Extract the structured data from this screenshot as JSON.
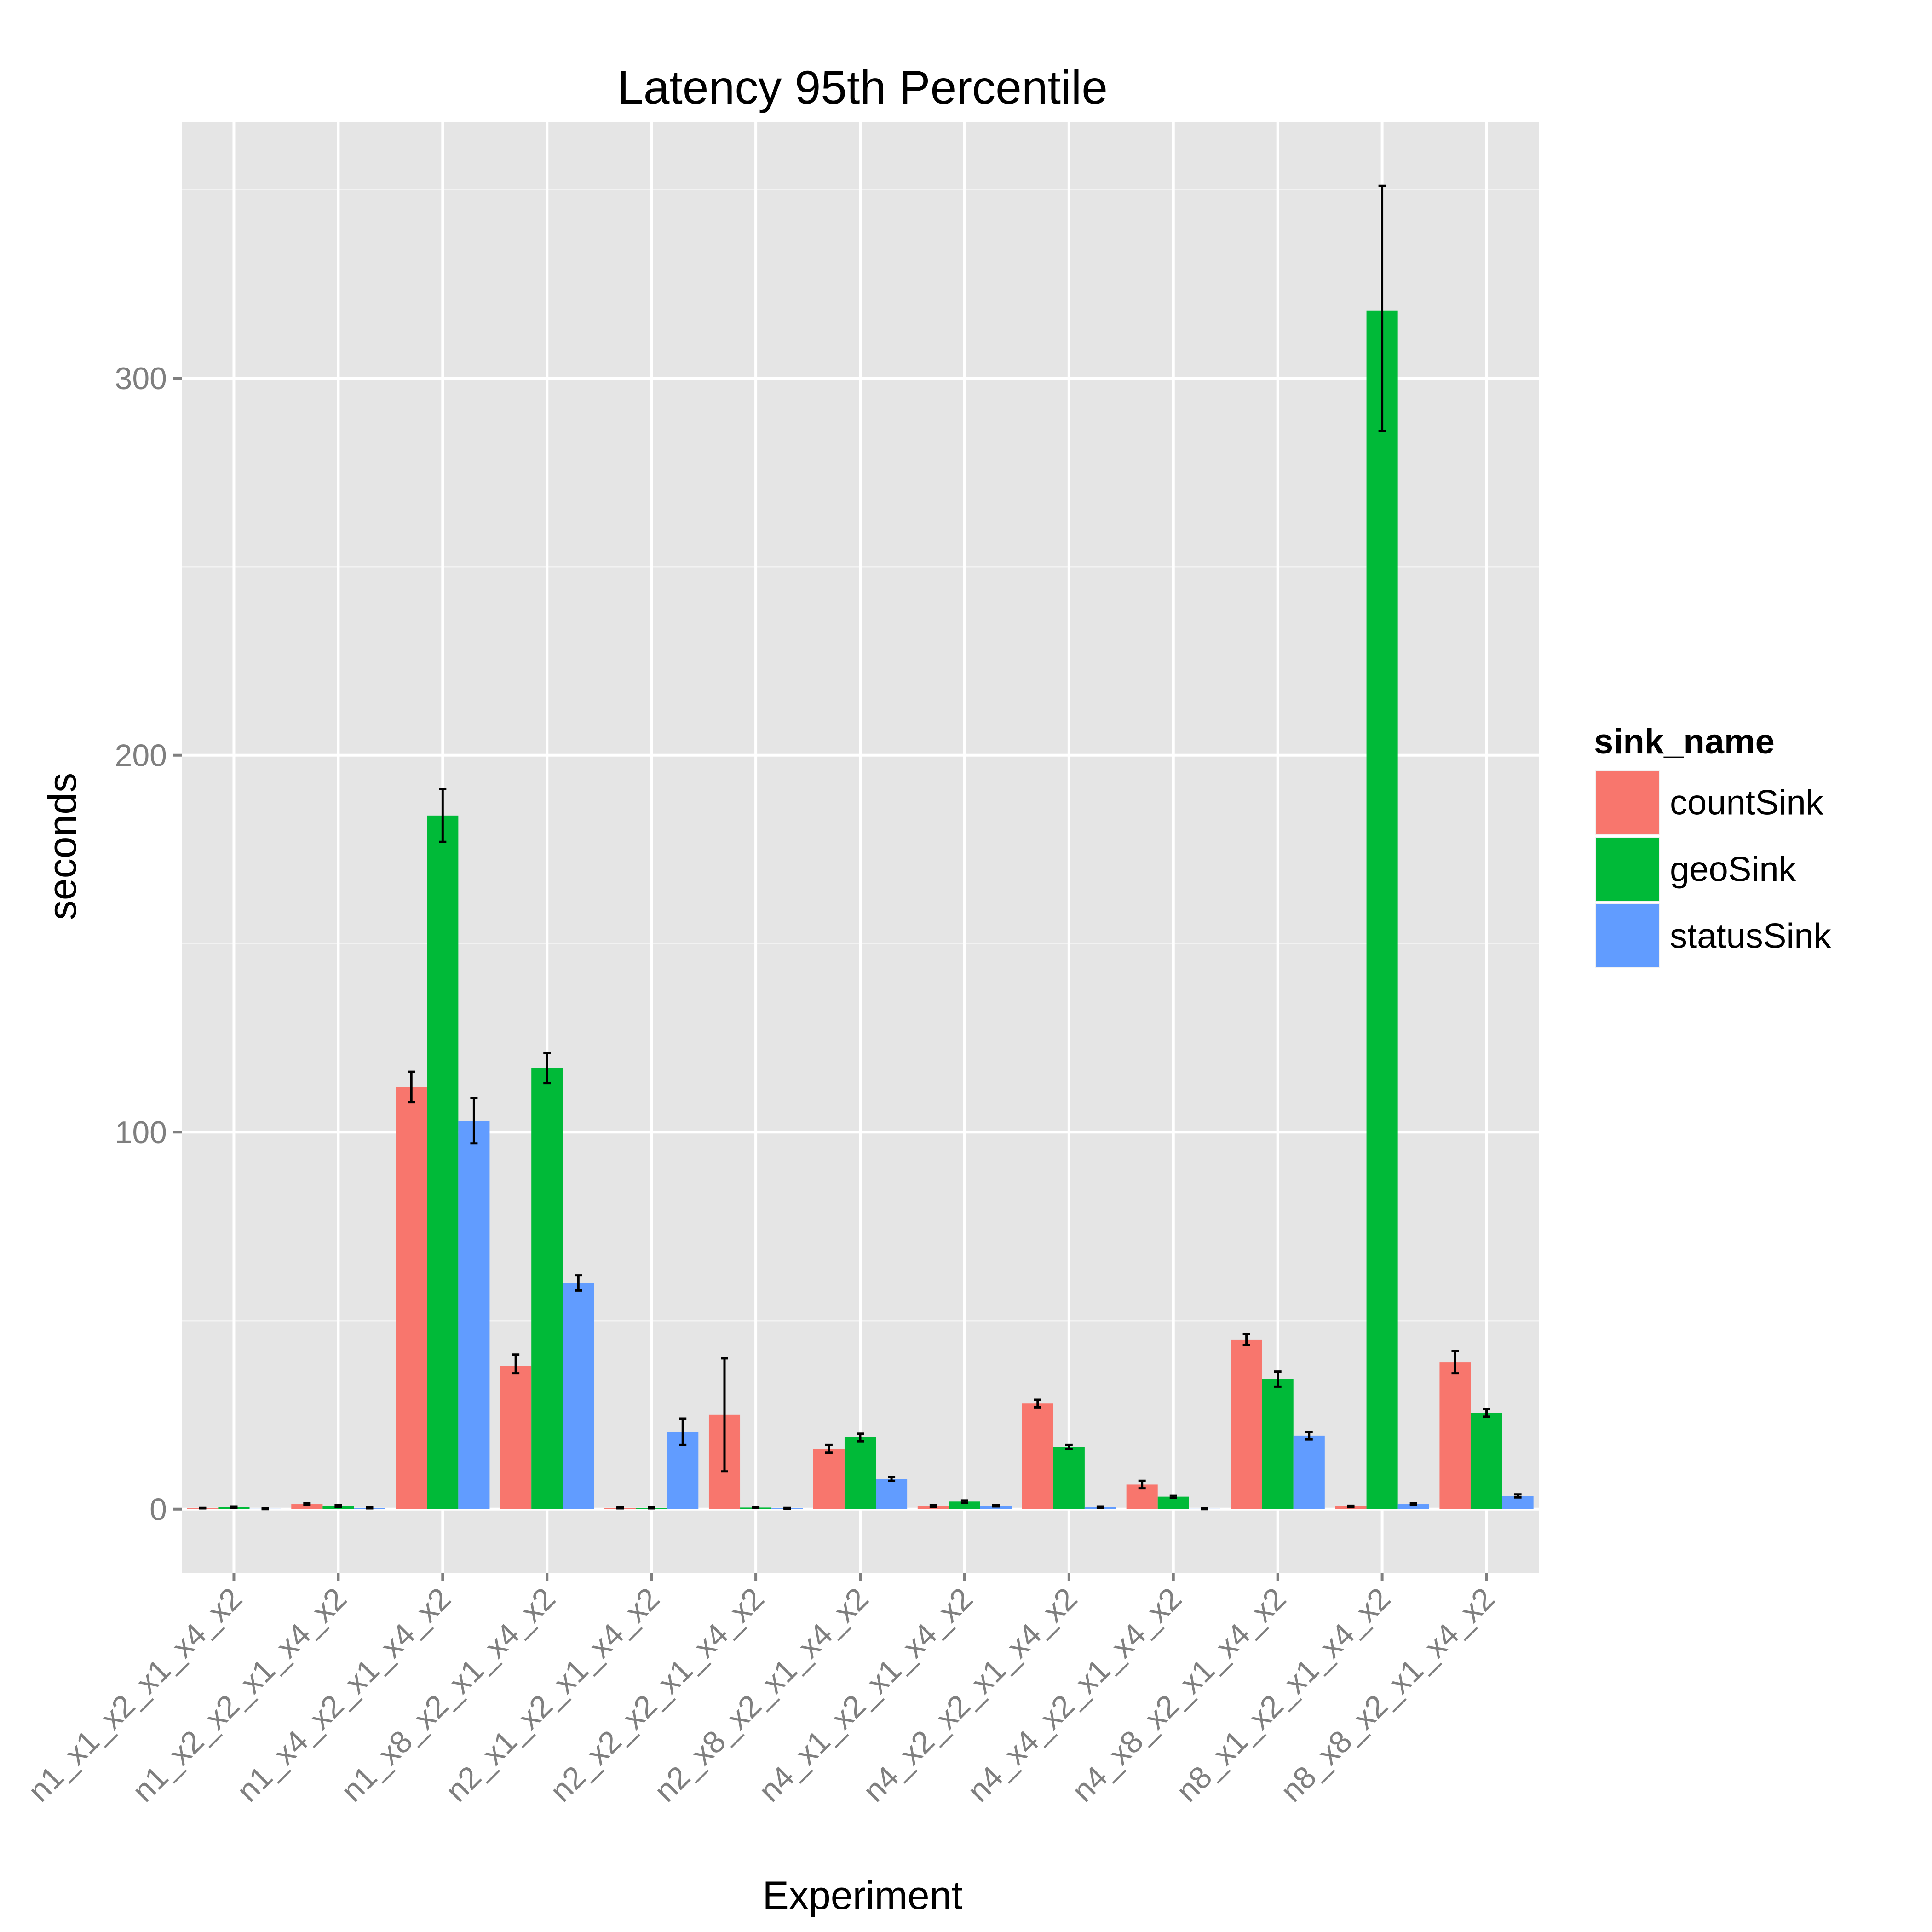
{
  "chart_data": {
    "type": "bar",
    "title": "Latency 95th Percentile",
    "xlabel": "Experiment",
    "ylabel": "seconds",
    "ylim": [
      -17,
      368
    ],
    "yticks": [
      0,
      100,
      200,
      300
    ],
    "grid": true,
    "legend_title": "sink_name",
    "legend_position": "right",
    "categories": [
      "n1_x1_x2_x1_x4_x2",
      "n1_x2_x2_x1_x4_x2",
      "n1_x4_x2_x1_x4_x2",
      "n1_x8_x2_x1_x4_x2",
      "n2_x1_x2_x1_x4_x2",
      "n2_x2_x2_x1_x4_x2",
      "n2_x8_x2_x1_x4_x2",
      "n4_x1_x2_x1_x4_x2",
      "n4_x2_x2_x1_x4_x2",
      "n4_x4_x2_x1_x4_x2",
      "n4_x8_x2_x1_x4_x2",
      "n8_x1_x2_x1_x4_x2",
      "n8_x8_x2_x1_x4_x2"
    ],
    "series": [
      {
        "name": "countSink",
        "color": "#F8766D",
        "values": [
          0.2,
          1.3,
          112,
          38,
          0.3,
          25,
          16,
          0.8,
          28,
          6.5,
          45,
          0.7,
          39
        ],
        "error_low": [
          0.2,
          1.0,
          108,
          36,
          0.2,
          10,
          15,
          0.6,
          27,
          5.5,
          43.5,
          0.5,
          36
        ],
        "error_high": [
          0.3,
          1.6,
          116,
          41,
          0.4,
          40,
          17,
          1.0,
          29,
          7.5,
          46.5,
          0.9,
          42
        ]
      },
      {
        "name": "geoSink",
        "color": "#00BA38",
        "values": [
          0.5,
          0.8,
          184,
          117,
          0.3,
          0.4,
          19,
          2.0,
          16.5,
          3.3,
          34.5,
          318,
          25.5
        ],
        "error_low": [
          0.3,
          0.6,
          177,
          113,
          0.2,
          0.3,
          18,
          1.7,
          16,
          3.0,
          32.5,
          286,
          24.5
        ],
        "error_high": [
          0.7,
          1.0,
          191,
          121,
          0.4,
          0.5,
          20,
          2.3,
          17,
          3.6,
          36.5,
          351,
          26.5
        ]
      },
      {
        "name": "statusSink",
        "color": "#619CFF",
        "values": [
          0.1,
          0.3,
          103,
          60,
          20.5,
          0.2,
          8,
          0.9,
          0.5,
          0.1,
          19.5,
          1.3,
          3.5
        ],
        "error_low": [
          0.0,
          0.2,
          97,
          58,
          17,
          0.1,
          7.5,
          0.7,
          0.3,
          0.0,
          18.5,
          1.1,
          3.1
        ],
        "error_high": [
          0.2,
          0.4,
          109,
          62,
          24,
          0.3,
          8.5,
          1.1,
          0.7,
          0.2,
          20.5,
          1.5,
          3.9
        ]
      }
    ]
  }
}
